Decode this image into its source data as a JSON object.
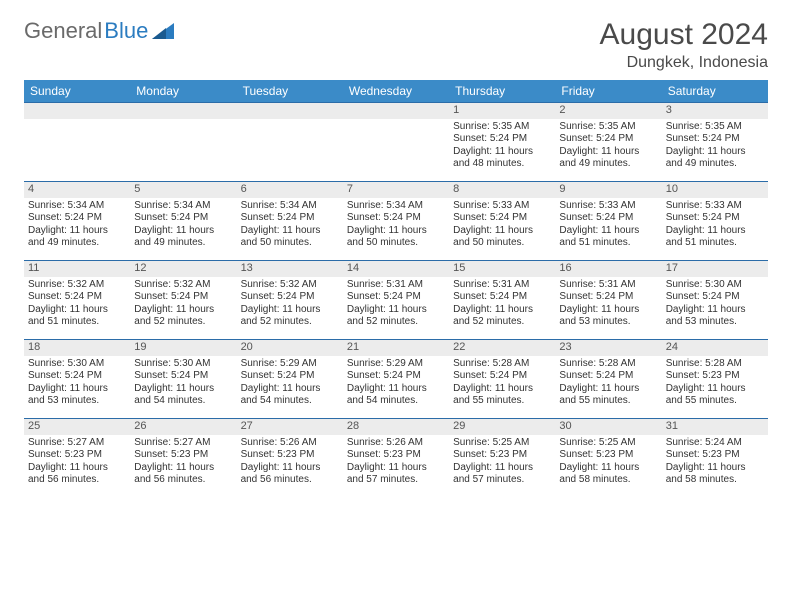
{
  "logo": {
    "text1": "General",
    "text2": "Blue"
  },
  "title": "August 2024",
  "location": "Dungkek, Indonesia",
  "colors": {
    "header_bg": "#3b8bc8",
    "header_text": "#ffffff",
    "week_border": "#2b6ca8",
    "daynum_bg": "#ececec",
    "body_text": "#333333",
    "title_text": "#4a4a4a",
    "logo_gray": "#6a6a6a",
    "logo_blue": "#2b7cc0",
    "page_bg": "#ffffff"
  },
  "day_names": [
    "Sunday",
    "Monday",
    "Tuesday",
    "Wednesday",
    "Thursday",
    "Friday",
    "Saturday"
  ],
  "weeks": [
    [
      {
        "n": "",
        "sr": "",
        "ss": "",
        "dl": ""
      },
      {
        "n": "",
        "sr": "",
        "ss": "",
        "dl": ""
      },
      {
        "n": "",
        "sr": "",
        "ss": "",
        "dl": ""
      },
      {
        "n": "",
        "sr": "",
        "ss": "",
        "dl": ""
      },
      {
        "n": "1",
        "sr": "Sunrise: 5:35 AM",
        "ss": "Sunset: 5:24 PM",
        "dl": "Daylight: 11 hours and 48 minutes."
      },
      {
        "n": "2",
        "sr": "Sunrise: 5:35 AM",
        "ss": "Sunset: 5:24 PM",
        "dl": "Daylight: 11 hours and 49 minutes."
      },
      {
        "n": "3",
        "sr": "Sunrise: 5:35 AM",
        "ss": "Sunset: 5:24 PM",
        "dl": "Daylight: 11 hours and 49 minutes."
      }
    ],
    [
      {
        "n": "4",
        "sr": "Sunrise: 5:34 AM",
        "ss": "Sunset: 5:24 PM",
        "dl": "Daylight: 11 hours and 49 minutes."
      },
      {
        "n": "5",
        "sr": "Sunrise: 5:34 AM",
        "ss": "Sunset: 5:24 PM",
        "dl": "Daylight: 11 hours and 49 minutes."
      },
      {
        "n": "6",
        "sr": "Sunrise: 5:34 AM",
        "ss": "Sunset: 5:24 PM",
        "dl": "Daylight: 11 hours and 50 minutes."
      },
      {
        "n": "7",
        "sr": "Sunrise: 5:34 AM",
        "ss": "Sunset: 5:24 PM",
        "dl": "Daylight: 11 hours and 50 minutes."
      },
      {
        "n": "8",
        "sr": "Sunrise: 5:33 AM",
        "ss": "Sunset: 5:24 PM",
        "dl": "Daylight: 11 hours and 50 minutes."
      },
      {
        "n": "9",
        "sr": "Sunrise: 5:33 AM",
        "ss": "Sunset: 5:24 PM",
        "dl": "Daylight: 11 hours and 51 minutes."
      },
      {
        "n": "10",
        "sr": "Sunrise: 5:33 AM",
        "ss": "Sunset: 5:24 PM",
        "dl": "Daylight: 11 hours and 51 minutes."
      }
    ],
    [
      {
        "n": "11",
        "sr": "Sunrise: 5:32 AM",
        "ss": "Sunset: 5:24 PM",
        "dl": "Daylight: 11 hours and 51 minutes."
      },
      {
        "n": "12",
        "sr": "Sunrise: 5:32 AM",
        "ss": "Sunset: 5:24 PM",
        "dl": "Daylight: 11 hours and 52 minutes."
      },
      {
        "n": "13",
        "sr": "Sunrise: 5:32 AM",
        "ss": "Sunset: 5:24 PM",
        "dl": "Daylight: 11 hours and 52 minutes."
      },
      {
        "n": "14",
        "sr": "Sunrise: 5:31 AM",
        "ss": "Sunset: 5:24 PM",
        "dl": "Daylight: 11 hours and 52 minutes."
      },
      {
        "n": "15",
        "sr": "Sunrise: 5:31 AM",
        "ss": "Sunset: 5:24 PM",
        "dl": "Daylight: 11 hours and 52 minutes."
      },
      {
        "n": "16",
        "sr": "Sunrise: 5:31 AM",
        "ss": "Sunset: 5:24 PM",
        "dl": "Daylight: 11 hours and 53 minutes."
      },
      {
        "n": "17",
        "sr": "Sunrise: 5:30 AM",
        "ss": "Sunset: 5:24 PM",
        "dl": "Daylight: 11 hours and 53 minutes."
      }
    ],
    [
      {
        "n": "18",
        "sr": "Sunrise: 5:30 AM",
        "ss": "Sunset: 5:24 PM",
        "dl": "Daylight: 11 hours and 53 minutes."
      },
      {
        "n": "19",
        "sr": "Sunrise: 5:30 AM",
        "ss": "Sunset: 5:24 PM",
        "dl": "Daylight: 11 hours and 54 minutes."
      },
      {
        "n": "20",
        "sr": "Sunrise: 5:29 AM",
        "ss": "Sunset: 5:24 PM",
        "dl": "Daylight: 11 hours and 54 minutes."
      },
      {
        "n": "21",
        "sr": "Sunrise: 5:29 AM",
        "ss": "Sunset: 5:24 PM",
        "dl": "Daylight: 11 hours and 54 minutes."
      },
      {
        "n": "22",
        "sr": "Sunrise: 5:28 AM",
        "ss": "Sunset: 5:24 PM",
        "dl": "Daylight: 11 hours and 55 minutes."
      },
      {
        "n": "23",
        "sr": "Sunrise: 5:28 AM",
        "ss": "Sunset: 5:24 PM",
        "dl": "Daylight: 11 hours and 55 minutes."
      },
      {
        "n": "24",
        "sr": "Sunrise: 5:28 AM",
        "ss": "Sunset: 5:23 PM",
        "dl": "Daylight: 11 hours and 55 minutes."
      }
    ],
    [
      {
        "n": "25",
        "sr": "Sunrise: 5:27 AM",
        "ss": "Sunset: 5:23 PM",
        "dl": "Daylight: 11 hours and 56 minutes."
      },
      {
        "n": "26",
        "sr": "Sunrise: 5:27 AM",
        "ss": "Sunset: 5:23 PM",
        "dl": "Daylight: 11 hours and 56 minutes."
      },
      {
        "n": "27",
        "sr": "Sunrise: 5:26 AM",
        "ss": "Sunset: 5:23 PM",
        "dl": "Daylight: 11 hours and 56 minutes."
      },
      {
        "n": "28",
        "sr": "Sunrise: 5:26 AM",
        "ss": "Sunset: 5:23 PM",
        "dl": "Daylight: 11 hours and 57 minutes."
      },
      {
        "n": "29",
        "sr": "Sunrise: 5:25 AM",
        "ss": "Sunset: 5:23 PM",
        "dl": "Daylight: 11 hours and 57 minutes."
      },
      {
        "n": "30",
        "sr": "Sunrise: 5:25 AM",
        "ss": "Sunset: 5:23 PM",
        "dl": "Daylight: 11 hours and 58 minutes."
      },
      {
        "n": "31",
        "sr": "Sunrise: 5:24 AM",
        "ss": "Sunset: 5:23 PM",
        "dl": "Daylight: 11 hours and 58 minutes."
      }
    ]
  ]
}
